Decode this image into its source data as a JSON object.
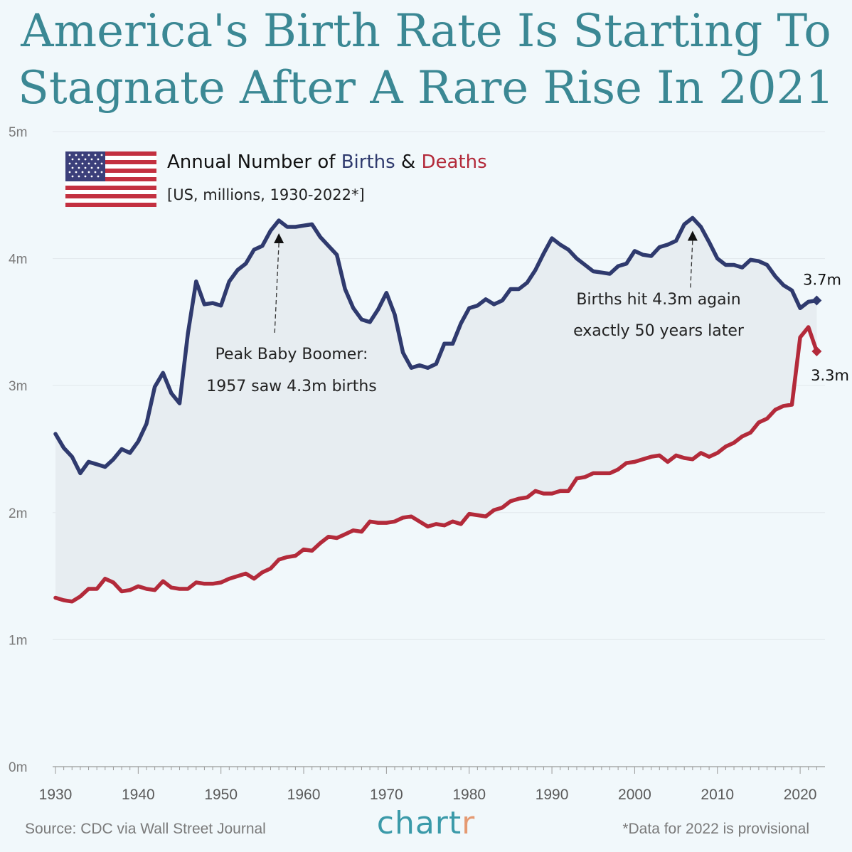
{
  "title": {
    "line1": "America's Birth Rate Is Starting To",
    "line2": "Stagnate After A Rare Rise In 2021"
  },
  "legend": {
    "prefix": "Annual Number of ",
    "births_word": "Births",
    "amp": " & ",
    "deaths_word": "Deaths",
    "subtitle": "[US, millions, 1930-2022*]"
  },
  "colors": {
    "births": "#2f3a6e",
    "deaths": "#b32a3a",
    "fill": "#e7edf1",
    "title": "#3b8894",
    "brand": "#3b9aa9",
    "brand_accent": "#e59a72"
  },
  "footer": {
    "source": "Source: CDC via Wall Street Journal",
    "brand_main": "chart",
    "brand_end": "r",
    "note": "*Data for 2022 is provisional"
  },
  "chart_data": {
    "type": "area",
    "title": "Annual Number of Births & Deaths",
    "subtitle": "[US, millions, 1930-2022*]",
    "xlabel": "",
    "ylabel": "",
    "xlim": [
      1930,
      2023
    ],
    "ylim": [
      0,
      5
    ],
    "y_ticks": [
      0,
      1,
      2,
      3,
      4,
      5
    ],
    "y_tick_labels": [
      "0m",
      "1m",
      "2m",
      "3m",
      "4m",
      "5m"
    ],
    "x_ticks": [
      1930,
      1940,
      1950,
      1960,
      1970,
      1980,
      1990,
      2000,
      2010,
      2020
    ],
    "x_tick_labels": [
      "1930",
      "1940",
      "1950",
      "1960",
      "1970",
      "1980",
      "1990",
      "2000",
      "2010",
      "2020"
    ],
    "x": [
      1930,
      1931,
      1932,
      1933,
      1934,
      1935,
      1936,
      1937,
      1938,
      1939,
      1940,
      1941,
      1942,
      1943,
      1944,
      1945,
      1946,
      1947,
      1948,
      1949,
      1950,
      1951,
      1952,
      1953,
      1954,
      1955,
      1956,
      1957,
      1958,
      1959,
      1960,
      1961,
      1962,
      1963,
      1964,
      1965,
      1966,
      1967,
      1968,
      1969,
      1970,
      1971,
      1972,
      1973,
      1974,
      1975,
      1976,
      1977,
      1978,
      1979,
      1980,
      1981,
      1982,
      1983,
      1984,
      1985,
      1986,
      1987,
      1988,
      1989,
      1990,
      1991,
      1992,
      1993,
      1994,
      1995,
      1996,
      1997,
      1998,
      1999,
      2000,
      2001,
      2002,
      2003,
      2004,
      2005,
      2006,
      2007,
      2008,
      2009,
      2010,
      2011,
      2012,
      2013,
      2014,
      2015,
      2016,
      2017,
      2018,
      2019,
      2020,
      2021,
      2022
    ],
    "series": [
      {
        "name": "Births",
        "values": [
          2.62,
          2.51,
          2.44,
          2.31,
          2.4,
          2.38,
          2.36,
          2.42,
          2.5,
          2.47,
          2.56,
          2.7,
          2.99,
          3.1,
          2.94,
          2.86,
          3.41,
          3.82,
          3.64,
          3.65,
          3.63,
          3.82,
          3.91,
          3.96,
          4.07,
          4.1,
          4.22,
          4.3,
          4.25,
          4.25,
          4.26,
          4.27,
          4.17,
          4.1,
          4.03,
          3.76,
          3.61,
          3.52,
          3.5,
          3.6,
          3.73,
          3.56,
          3.26,
          3.14,
          3.16,
          3.14,
          3.17,
          3.33,
          3.33,
          3.49,
          3.61,
          3.63,
          3.68,
          3.64,
          3.67,
          3.76,
          3.76,
          3.81,
          3.91,
          4.04,
          4.16,
          4.11,
          4.07,
          4.0,
          3.95,
          3.9,
          3.89,
          3.88,
          3.94,
          3.96,
          4.06,
          4.03,
          4.02,
          4.09,
          4.11,
          4.14,
          4.27,
          4.32,
          4.25,
          4.13,
          4.0,
          3.95,
          3.95,
          3.93,
          3.99,
          3.98,
          3.95,
          3.86,
          3.79,
          3.75,
          3.61,
          3.66,
          3.67
        ]
      },
      {
        "name": "Deaths",
        "values": [
          1.33,
          1.31,
          1.3,
          1.34,
          1.4,
          1.4,
          1.48,
          1.45,
          1.38,
          1.39,
          1.42,
          1.4,
          1.39,
          1.46,
          1.41,
          1.4,
          1.4,
          1.45,
          1.44,
          1.44,
          1.45,
          1.48,
          1.5,
          1.52,
          1.48,
          1.53,
          1.56,
          1.63,
          1.65,
          1.66,
          1.71,
          1.7,
          1.76,
          1.81,
          1.8,
          1.83,
          1.86,
          1.85,
          1.93,
          1.92,
          1.92,
          1.93,
          1.96,
          1.97,
          1.93,
          1.89,
          1.91,
          1.9,
          1.93,
          1.91,
          1.99,
          1.98,
          1.97,
          2.02,
          2.04,
          2.09,
          2.11,
          2.12,
          2.17,
          2.15,
          2.15,
          2.17,
          2.17,
          2.27,
          2.28,
          2.31,
          2.31,
          2.31,
          2.34,
          2.39,
          2.4,
          2.42,
          2.44,
          2.45,
          2.4,
          2.45,
          2.43,
          2.42,
          2.47,
          2.44,
          2.47,
          2.52,
          2.55,
          2.6,
          2.63,
          2.71,
          2.74,
          2.81,
          2.84,
          2.85,
          3.38,
          3.46,
          3.27
        ]
      }
    ],
    "annotations": [
      {
        "year": 1957,
        "value": 4.3,
        "line1": "Peak Baby Boomer:",
        "line2": "1957 saw 4.3m births"
      },
      {
        "year": 2007,
        "value": 4.32,
        "line1": "Births hit 4.3m again",
        "line2": "exactly 50 years later"
      }
    ],
    "end_labels": [
      {
        "series": "Births",
        "text": "3.7m"
      },
      {
        "series": "Deaths",
        "text": "3.3m"
      }
    ],
    "grid": true,
    "fill_between": true
  }
}
